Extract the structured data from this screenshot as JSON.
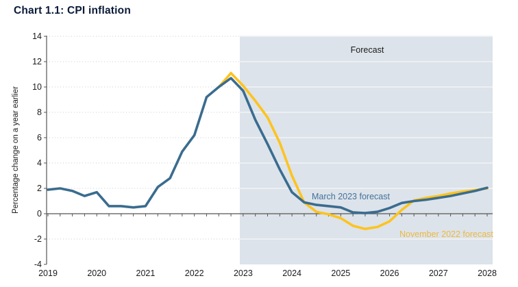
{
  "title": "Chart 1.1: CPI inflation",
  "chart": {
    "forecast_label": "Forecast",
    "ylabel": "Percentage change on a year earlier",
    "march_label": "March 2023 forecast",
    "november_label": "November 2022 forecast"
  },
  "colors": {
    "march": "#3A6C8F",
    "march_text": "#44719A",
    "november": "#FDC31F",
    "november_text": "#EDB93F",
    "shade": "#DCE3EA",
    "grid": "#C9CDD2",
    "grid_on_shade": "#FFFFFF",
    "axis": "#555555",
    "text": "#1A1A1A",
    "title": "#0A1A38"
  },
  "chart_data": {
    "type": "line",
    "title": "Chart 1.1: CPI inflation",
    "xlabel": "",
    "ylabel": "Percentage change on a year earlier",
    "ylim": [
      -4,
      14
    ],
    "ytick_step": 2,
    "yticks": [
      14,
      12,
      10,
      8,
      6,
      4,
      2,
      0,
      -2,
      -4
    ],
    "x_tick_years": [
      2019,
      2020,
      2021,
      2022,
      2023,
      2024,
      2025,
      2026,
      2027,
      2028
    ],
    "x_frequency": "quarterly",
    "grid": "dotted-horizontal",
    "forecast_shade_start_year": 2022.875,
    "forecast_annotation": "Forecast",
    "legend_position": "inline-labels-on-chart",
    "series": [
      {
        "name": "March 2023 forecast",
        "color": "#3A6C8F",
        "start": "2019Q1",
        "start_quarter_index": 0,
        "values": [
          1.9,
          2.0,
          1.8,
          1.4,
          1.7,
          0.6,
          0.6,
          0.5,
          0.6,
          2.1,
          2.8,
          4.9,
          6.2,
          9.2,
          10.0,
          10.7,
          9.7,
          7.4,
          5.5,
          3.5,
          1.7,
          0.9,
          0.7,
          0.6,
          0.5,
          0.1,
          0.05,
          0.15,
          0.45,
          0.85,
          1.0,
          1.1,
          1.25,
          1.4,
          1.6,
          1.8,
          2.05
        ]
      },
      {
        "name": "November 2022 forecast",
        "color": "#FDC31F",
        "start": "2022Q3",
        "start_quarter_index": 14,
        "values": [
          10.0,
          11.1,
          10.1,
          8.9,
          7.6,
          5.6,
          3.0,
          0.9,
          0.15,
          -0.05,
          -0.35,
          -0.95,
          -1.2,
          -1.05,
          -0.6,
          0.3,
          1.05,
          1.25,
          1.4,
          1.6,
          1.75,
          1.87,
          2.0
        ]
      }
    ]
  }
}
